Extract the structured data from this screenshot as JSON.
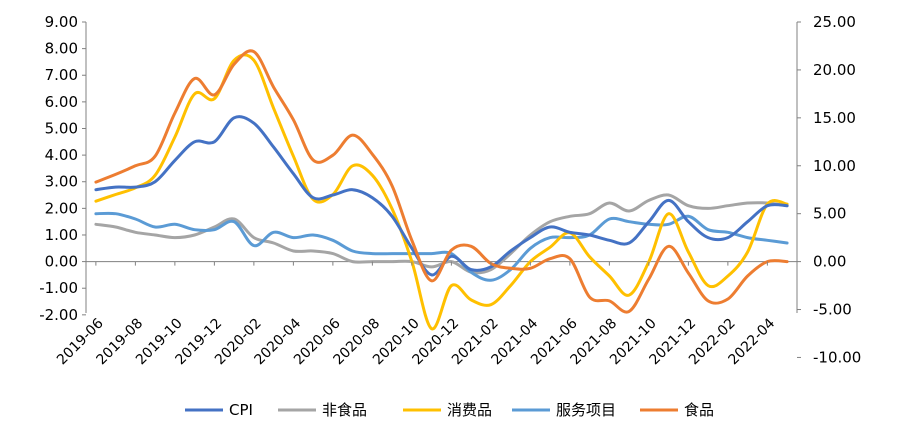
{
  "chart_data": {
    "type": "line",
    "x": [
      "2019-06",
      "2019-07",
      "2019-08",
      "2019-09",
      "2019-10",
      "2019-11",
      "2019-12",
      "2020-01",
      "2020-02",
      "2020-03",
      "2020-04",
      "2020-05",
      "2020-06",
      "2020-07",
      "2020-08",
      "2020-09",
      "2020-10",
      "2020-11",
      "2020-12",
      "2021-01",
      "2021-02",
      "2021-03",
      "2021-04",
      "2021-05",
      "2021-06",
      "2021-07",
      "2021-08",
      "2021-09",
      "2021-10",
      "2021-11",
      "2021-12",
      "2022-01",
      "2022-02",
      "2022-03",
      "2022-04",
      "2022-05"
    ],
    "x_tick_labels": [
      "2019-06",
      "2019-08",
      "2019-10",
      "2019-12",
      "2020-02",
      "2020-04",
      "2020-06",
      "2020-08",
      "2020-10",
      "2020-12",
      "2021-02",
      "2021-04",
      "2021-06",
      "2021-08",
      "2021-10",
      "2021-12",
      "2022-02",
      "2022-04"
    ],
    "y_left": {
      "ylim": [
        -2,
        9
      ],
      "ticks": [
        "9.00",
        "8.00",
        "7.00",
        "6.00",
        "5.00",
        "4.00",
        "3.00",
        "2.00",
        "1.00",
        "0.00",
        "-1.00",
        "-2.00"
      ]
    },
    "y_right": {
      "ylim": [
        -10,
        25
      ],
      "ticks": [
        "25.00",
        "20.00",
        "15.00",
        "10.00",
        "5.00",
        "0.00",
        "-5.00",
        "-10.00"
      ]
    },
    "grid": false,
    "legend_position": "bottom",
    "series": [
      {
        "name": "CPI",
        "axis": "left",
        "color": "#4472C4",
        "values": [
          2.7,
          2.8,
          2.8,
          3.0,
          3.8,
          4.5,
          4.5,
          5.4,
          5.2,
          4.3,
          3.3,
          2.4,
          2.5,
          2.7,
          2.4,
          1.7,
          0.5,
          -0.5,
          0.2,
          -0.3,
          -0.2,
          0.4,
          0.9,
          1.3,
          1.1,
          1.0,
          0.8,
          0.7,
          1.5,
          2.3,
          1.5,
          0.9,
          0.9,
          1.5,
          2.1,
          2.1
        ]
      },
      {
        "name": "非食品",
        "axis": "left",
        "color": "#A5A5A5",
        "values": [
          1.4,
          1.3,
          1.1,
          1.0,
          0.9,
          1.0,
          1.3,
          1.6,
          0.9,
          0.7,
          0.4,
          0.4,
          0.3,
          0.0,
          0.0,
          0.0,
          0.0,
          -0.2,
          0.0,
          -0.4,
          -0.3,
          0.3,
          1.0,
          1.5,
          1.7,
          1.8,
          2.2,
          1.9,
          2.3,
          2.5,
          2.1,
          2.0,
          2.1,
          2.2,
          2.2,
          2.1
        ]
      },
      {
        "name": "消费品",
        "axis": "right",
        "color": "#FFC000",
        "values": [
          6.3,
          7.0,
          7.7,
          9.0,
          13.0,
          17.5,
          17.0,
          21.0,
          21.0,
          16.0,
          11.0,
          6.5,
          7.0,
          10.0,
          9.0,
          5.5,
          0.0,
          -7.0,
          -2.5,
          -4.0,
          -4.5,
          -2.5,
          0.0,
          1.5,
          3.0,
          0.5,
          -1.5,
          -3.5,
          0.0,
          5.0,
          1.0,
          -2.5,
          -1.5,
          1.0,
          6.0,
          6.0
        ]
      },
      {
        "name": "服务项目",
        "axis": "left",
        "color": "#5B9BD5",
        "values": [
          1.8,
          1.8,
          1.6,
          1.3,
          1.4,
          1.2,
          1.2,
          1.5,
          0.6,
          1.1,
          0.9,
          1.0,
          0.8,
          0.4,
          0.3,
          0.3,
          0.3,
          0.3,
          0.3,
          -0.4,
          -0.7,
          -0.3,
          0.5,
          0.9,
          0.9,
          1.0,
          1.6,
          1.5,
          1.4,
          1.4,
          1.7,
          1.2,
          1.1,
          0.9,
          0.8,
          0.7
        ]
      },
      {
        "name": "食品",
        "axis": "right",
        "color": "#ED7D31",
        "values": [
          8.3,
          9.1,
          10.0,
          11.0,
          15.5,
          19.1,
          17.4,
          20.6,
          21.9,
          18.2,
          14.8,
          10.6,
          11.1,
          13.2,
          11.2,
          7.9,
          2.2,
          -2.0,
          1.2,
          1.6,
          -0.2,
          -0.7,
          -0.7,
          0.3,
          0.3,
          -3.7,
          -4.1,
          -5.2,
          -1.8,
          1.6,
          -1.2,
          -4.1,
          -3.9,
          -1.5,
          0.0,
          0.0
        ]
      }
    ]
  }
}
